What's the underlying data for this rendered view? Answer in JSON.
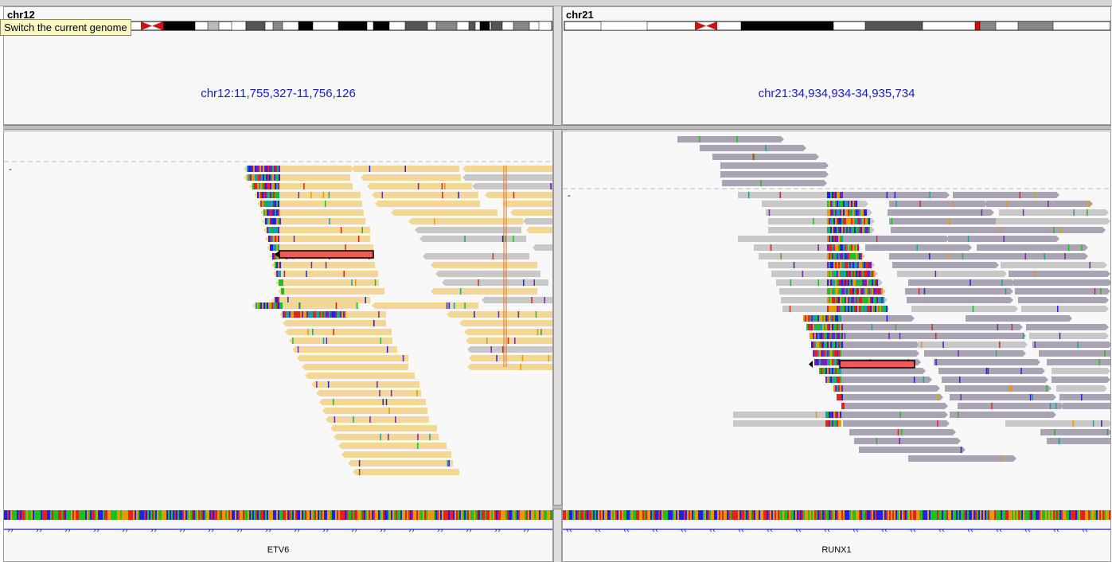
{
  "tooltip": {
    "text": "Switch the current genome"
  },
  "left": {
    "chromosome": "chr12",
    "locus": "chr12:11,755,327-11,756,126",
    "gene": "ETV6",
    "strand_symbol": "››",
    "read_color": "#f2d796"
  },
  "right": {
    "chromosome": "chr21",
    "locus": "chr21:34,934,934-34,935,734",
    "gene": "RUNX1",
    "strand_symbol": "‹‹",
    "read_color": "#a8a4b4"
  },
  "colors": {
    "locus_text": "#1a1ad0",
    "selected_read": "#ec5a5a",
    "gene_line": "#1a1ad0",
    "ideogram_centromere": "#c81414"
  },
  "track_marker": "-"
}
